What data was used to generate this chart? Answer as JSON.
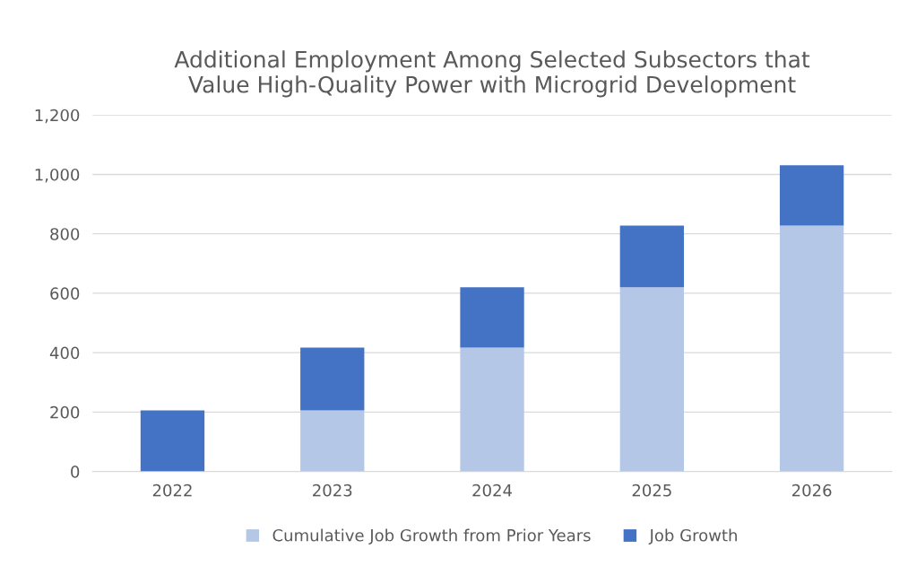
{
  "chart_data": {
    "type": "bar",
    "title": "Additional Employment Among Selected Subsectors that\nValue High-Quality Power with Microgrid Development",
    "categories": [
      "2022",
      "2023",
      "2024",
      "2025",
      "2026"
    ],
    "stacked": true,
    "series": [
      {
        "name": "Cumulative Job Growth from Prior Years",
        "color": "#b4c7e7",
        "values": [
          0,
          206,
          417,
          620,
          828
        ]
      },
      {
        "name": "Job Growth",
        "color": "#4472c4",
        "values": [
          206,
          211,
          203,
          208,
          203
        ]
      }
    ],
    "ylim": [
      0,
      1200
    ],
    "yticks": [
      {
        "value": 0,
        "label": "0"
      },
      {
        "value": 200,
        "label": "200"
      },
      {
        "value": 400,
        "label": "400"
      },
      {
        "value": 600,
        "label": "600"
      },
      {
        "value": 800,
        "label": "800"
      },
      {
        "value": 1000,
        "label": "1,000"
      },
      {
        "value": 1200,
        "label": "1,200"
      }
    ],
    "grid": "y",
    "legend": "bottom"
  }
}
